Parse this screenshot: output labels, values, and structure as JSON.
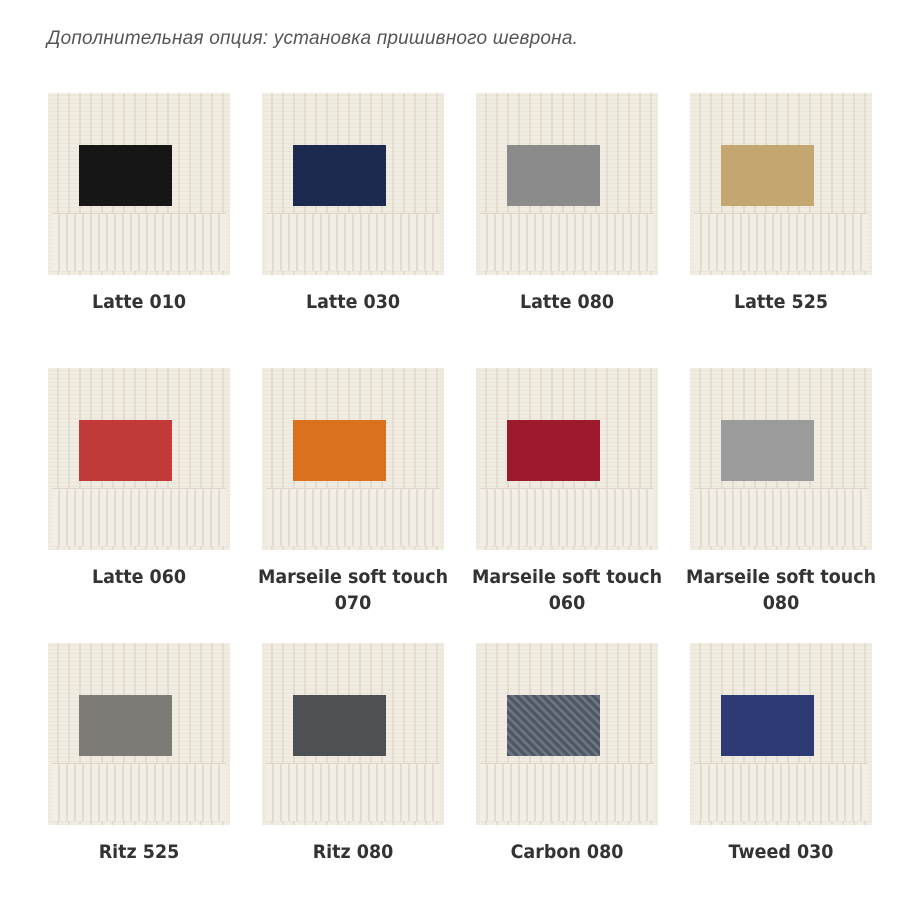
{
  "heading": "Дополнительная опция: установка пришивного шеврона.",
  "items": [
    {
      "label": "Latte 010",
      "color": "#161616"
    },
    {
      "label": "Latte 030",
      "color": "#1c2a4f"
    },
    {
      "label": "Latte 080",
      "color": "#8b8b8b"
    },
    {
      "label": "Latte 525",
      "color": "#c3a670"
    },
    {
      "label": "Latte 060",
      "color": "#c23a38"
    },
    {
      "label": "Marseile soft touch 070",
      "color": "#d9711f"
    },
    {
      "label": "Marseile soft touch 060",
      "color": "#9c1a2c"
    },
    {
      "label": "Marseile soft touch 080",
      "color": "#9b9b9b"
    },
    {
      "label": "Ritz 525",
      "color": "#7d7b75"
    },
    {
      "label": "Ritz 080",
      "color": "#4e5153"
    },
    {
      "label": "Carbon 080",
      "color": "#5c6470"
    },
    {
      "label": "Tweed 030",
      "color": "#2d3a74"
    }
  ]
}
